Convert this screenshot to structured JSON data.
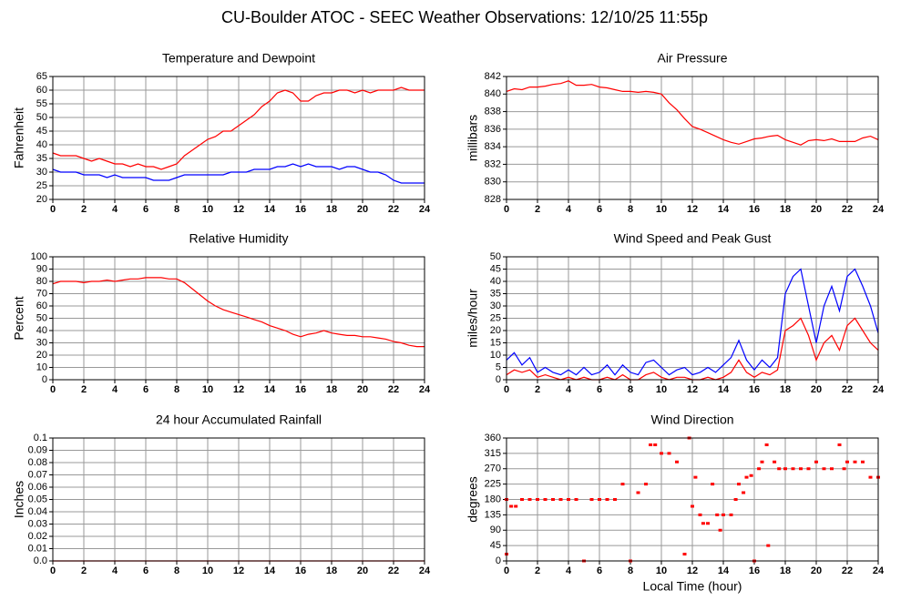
{
  "title": "CU-Boulder ATOC - SEEC Weather Observations: 12/10/25 11:55p",
  "chart_data": [
    {
      "type": "line",
      "title": "Temperature and Dewpoint",
      "ylabel": "Fahrenheit",
      "x": [
        0,
        0.5,
        1,
        1.5,
        2,
        2.5,
        3,
        3.5,
        4,
        4.5,
        5,
        5.5,
        6,
        6.5,
        7,
        7.5,
        8,
        8.5,
        9,
        9.5,
        10,
        10.5,
        11,
        11.5,
        12,
        12.5,
        13,
        13.5,
        14,
        14.5,
        15,
        15.5,
        16,
        16.5,
        17,
        17.5,
        18,
        18.5,
        19,
        19.5,
        20,
        20.5,
        21,
        21.5,
        22,
        22.5,
        23,
        23.5,
        24
      ],
      "series": [
        {
          "color": "#ff0000",
          "values": [
            37,
            36,
            36,
            36,
            35,
            34,
            35,
            34,
            33,
            33,
            32,
            33,
            32,
            32,
            31,
            32,
            33,
            36,
            38,
            40,
            42,
            43,
            45,
            45,
            47,
            49,
            51,
            54,
            56,
            59,
            60,
            59,
            56,
            56,
            58,
            59,
            59,
            60,
            60,
            59,
            60,
            59,
            60,
            60,
            60,
            61,
            60,
            60,
            60
          ]
        },
        {
          "color": "#0000ff",
          "values": [
            31,
            30,
            30,
            30,
            29,
            29,
            29,
            28,
            29,
            28,
            28,
            28,
            28,
            27,
            27,
            27,
            28,
            29,
            29,
            29,
            29,
            29,
            29,
            30,
            30,
            30,
            31,
            31,
            31,
            32,
            32,
            33,
            32,
            33,
            32,
            32,
            32,
            31,
            32,
            32,
            31,
            30,
            30,
            29,
            27,
            26,
            26,
            26,
            26
          ]
        }
      ],
      "xlim": [
        0,
        24
      ],
      "xticks": [
        0,
        2,
        4,
        6,
        8,
        10,
        12,
        14,
        16,
        18,
        20,
        22,
        24
      ],
      "ylim": [
        20,
        65
      ],
      "yticks": [
        20,
        25,
        30,
        35,
        40,
        45,
        50,
        55,
        60,
        65
      ],
      "grid": true
    },
    {
      "type": "line",
      "title": "Air Pressure",
      "ylabel": "millibars",
      "x": [
        0,
        0.5,
        1,
        1.5,
        2,
        2.5,
        3,
        3.5,
        4,
        4.5,
        5,
        5.5,
        6,
        6.5,
        7,
        7.5,
        8,
        8.5,
        9,
        9.5,
        10,
        10.5,
        11,
        11.5,
        12,
        12.5,
        13,
        13.5,
        14,
        14.5,
        15,
        15.5,
        16,
        16.5,
        17,
        17.5,
        18,
        18.5,
        19,
        19.5,
        20,
        20.5,
        21,
        21.5,
        22,
        22.5,
        23,
        23.5,
        24
      ],
      "series": [
        {
          "color": "#ff0000",
          "values": [
            840.3,
            840.6,
            840.5,
            840.8,
            840.8,
            840.9,
            841.1,
            841.2,
            841.5,
            841,
            841,
            841.1,
            840.8,
            840.7,
            840.5,
            840.3,
            840.3,
            840.2,
            840.3,
            840.2,
            840,
            839,
            838.2,
            837.2,
            836.3,
            836,
            835.6,
            835.2,
            834.8,
            834.5,
            834.3,
            834.6,
            834.9,
            835,
            835.2,
            835.3,
            834.8,
            834.5,
            834.2,
            834.7,
            834.8,
            834.7,
            834.9,
            834.6,
            834.6,
            834.6,
            835,
            835.2,
            834.8
          ]
        }
      ],
      "xlim": [
        0,
        24
      ],
      "xticks": [
        0,
        2,
        4,
        6,
        8,
        10,
        12,
        14,
        16,
        18,
        20,
        22,
        24
      ],
      "ylim": [
        828,
        842
      ],
      "yticks": [
        828,
        830,
        832,
        834,
        836,
        838,
        840,
        842
      ],
      "grid": true
    },
    {
      "type": "line",
      "title": "Relative Humidity",
      "ylabel": "Percent",
      "x": [
        0,
        0.5,
        1,
        1.5,
        2,
        2.5,
        3,
        3.5,
        4,
        4.5,
        5,
        5.5,
        6,
        6.5,
        7,
        7.5,
        8,
        8.5,
        9,
        9.5,
        10,
        10.5,
        11,
        11.5,
        12,
        12.5,
        13,
        13.5,
        14,
        14.5,
        15,
        15.5,
        16,
        16.5,
        17,
        17.5,
        18,
        18.5,
        19,
        19.5,
        20,
        20.5,
        21,
        21.5,
        22,
        22.5,
        23,
        23.5,
        24
      ],
      "series": [
        {
          "color": "#ff0000",
          "values": [
            78,
            80,
            80,
            80,
            79,
            80,
            80,
            81,
            80,
            81,
            82,
            82,
            83,
            83,
            83,
            82,
            82,
            79,
            74,
            69,
            64,
            60,
            57,
            55,
            53,
            51,
            49,
            47,
            44,
            42,
            40,
            37,
            35,
            37,
            38,
            40,
            38,
            37,
            36,
            36,
            35,
            35,
            34,
            33,
            31,
            30,
            28,
            27,
            27
          ]
        }
      ],
      "xlim": [
        0,
        24
      ],
      "xticks": [
        0,
        2,
        4,
        6,
        8,
        10,
        12,
        14,
        16,
        18,
        20,
        22,
        24
      ],
      "ylim": [
        0,
        100
      ],
      "yticks": [
        0,
        10,
        20,
        30,
        40,
        50,
        60,
        70,
        80,
        90,
        100
      ],
      "grid": true
    },
    {
      "type": "line",
      "title": "Wind Speed and Peak Gust",
      "ylabel": "miles/hour",
      "x": [
        0,
        0.5,
        1,
        1.5,
        2,
        2.5,
        3,
        3.5,
        4,
        4.5,
        5,
        5.5,
        6,
        6.5,
        7,
        7.5,
        8,
        8.5,
        9,
        9.5,
        10,
        10.5,
        11,
        11.5,
        12,
        12.5,
        13,
        13.5,
        14,
        14.5,
        15,
        15.5,
        16,
        16.5,
        17,
        17.5,
        18,
        18.5,
        19,
        19.5,
        20,
        20.5,
        21,
        21.5,
        22,
        22.5,
        23,
        23.5,
        24
      ],
      "series": [
        {
          "color": "#0000ff",
          "values": [
            8,
            11,
            6,
            9,
            3,
            5,
            3,
            2,
            4,
            2,
            5,
            2,
            3,
            6,
            2,
            6,
            3,
            2,
            7,
            8,
            5,
            2,
            4,
            5,
            2,
            3,
            5,
            3,
            6,
            9,
            16,
            8,
            4,
            8,
            5,
            9,
            35,
            42,
            45,
            30,
            15,
            30,
            38,
            28,
            42,
            45,
            38,
            30,
            19
          ]
        },
        {
          "color": "#ff0000",
          "values": [
            2,
            4,
            3,
            4,
            1,
            2,
            1,
            0,
            1,
            0,
            1,
            0,
            0,
            1,
            0,
            2,
            0,
            0,
            2,
            3,
            1,
            0,
            1,
            1,
            0,
            0,
            1,
            0,
            1,
            3,
            8,
            3,
            1,
            3,
            2,
            4,
            20,
            22,
            25,
            18,
            8,
            15,
            18,
            12,
            22,
            25,
            20,
            15,
            12
          ]
        }
      ],
      "xlim": [
        0,
        24
      ],
      "xticks": [
        0,
        2,
        4,
        6,
        8,
        10,
        12,
        14,
        16,
        18,
        20,
        22,
        24
      ],
      "ylim": [
        0,
        50
      ],
      "yticks": [
        0,
        5,
        10,
        15,
        20,
        25,
        30,
        35,
        40,
        45,
        50
      ],
      "grid": true
    },
    {
      "type": "line",
      "title": "24 hour Accumulated Rainfall",
      "ylabel": "Inches",
      "x": [
        0,
        24
      ],
      "series": [
        {
          "color": "#ff0000",
          "values": [
            0,
            0
          ]
        }
      ],
      "xlim": [
        0,
        24
      ],
      "xticks": [
        0,
        2,
        4,
        6,
        8,
        10,
        12,
        14,
        16,
        18,
        20,
        22,
        24
      ],
      "ylim": [
        0,
        0.1
      ],
      "yticks": [
        {
          "value": 0,
          "label": "0.0"
        },
        0.01,
        0.02,
        0.03,
        0.04,
        0.05,
        0.06,
        0.07,
        0.08,
        0.09,
        0.1
      ],
      "grid": true
    },
    {
      "type": "scatter",
      "title": "Wind Direction",
      "ylabel": "degrees",
      "xlabel": "Local Time (hour)",
      "x": [
        0,
        0,
        0.3,
        0.6,
        1,
        1.5,
        2,
        2.5,
        3,
        3.5,
        4,
        4.5,
        5,
        5.5,
        6,
        6.5,
        7,
        7.5,
        8,
        8.5,
        9,
        9.3,
        9.6,
        10,
        10.5,
        11,
        11.5,
        11.8,
        12,
        12.2,
        12.5,
        12.7,
        13,
        13.3,
        13.6,
        13.8,
        14,
        14.5,
        14.8,
        15,
        15.3,
        15.5,
        15.8,
        16,
        16.3,
        16.5,
        16.8,
        16.9,
        17.3,
        17.6,
        18,
        18.5,
        19,
        19.5,
        20,
        20.5,
        21,
        21.5,
        21.8,
        22,
        22.5,
        23,
        23.5,
        24
      ],
      "series": [
        {
          "color": "#ff0000",
          "values": [
            20,
            180,
            160,
            160,
            180,
            180,
            180,
            180,
            180,
            180,
            180,
            180,
            0,
            180,
            180,
            180,
            180,
            225,
            0,
            200,
            225,
            340,
            340,
            315,
            315,
            290,
            20,
            360,
            160,
            245,
            135,
            110,
            110,
            225,
            135,
            90,
            135,
            135,
            180,
            225,
            200,
            245,
            250,
            0,
            270,
            290,
            340,
            45,
            290,
            270,
            270,
            270,
            270,
            270,
            290,
            270,
            270,
            340,
            270,
            290,
            290,
            290,
            245,
            245
          ]
        }
      ],
      "xlim": [
        0,
        24
      ],
      "xticks": [
        0,
        2,
        4,
        6,
        8,
        10,
        12,
        14,
        16,
        18,
        20,
        22,
        24
      ],
      "ylim": [
        0,
        360
      ],
      "yticks": [
        0,
        45,
        90,
        135,
        180,
        225,
        270,
        315,
        360
      ],
      "grid": true
    }
  ]
}
